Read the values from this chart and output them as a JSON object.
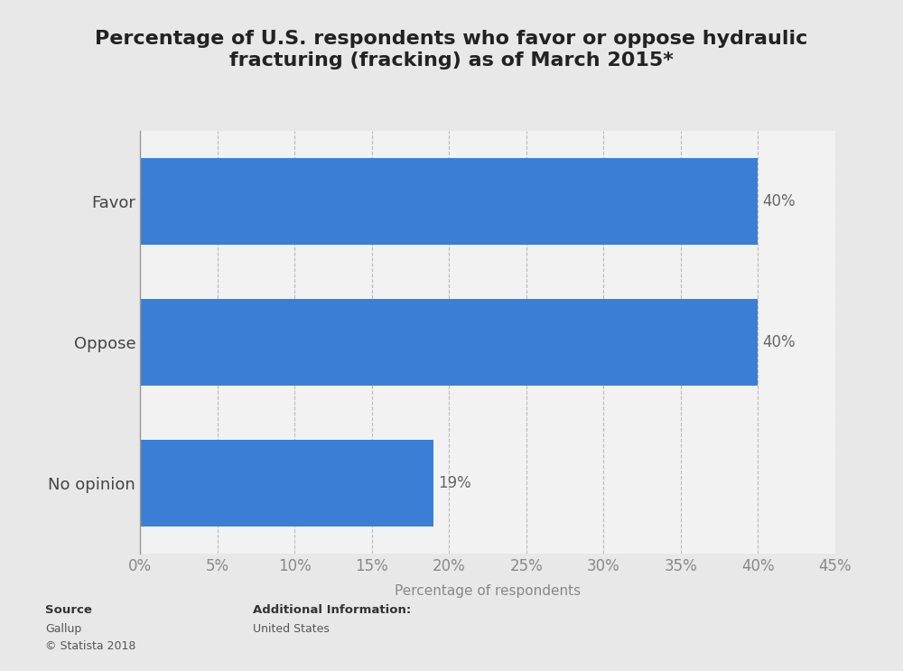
{
  "title": "Percentage of U.S. respondents who favor or oppose hydraulic\nfracturing (fracking) as of March 2015*",
  "categories": [
    "No opinion",
    "Oppose",
    "Favor"
  ],
  "values": [
    19,
    40,
    40
  ],
  "bar_color": "#3a7fd5",
  "background_color": "#e8e8e8",
  "plot_background_color": "#f2f2f2",
  "xlabel": "Percentage of respondents",
  "xlim": [
    0,
    45
  ],
  "xticks": [
    0,
    5,
    10,
    15,
    20,
    25,
    30,
    35,
    40,
    45
  ],
  "bar_labels": [
    "19%",
    "40%",
    "40%"
  ],
  "label_color": "#666666",
  "title_fontsize": 16,
  "ytick_fontsize": 13,
  "tick_fontsize": 12,
  "xlabel_fontsize": 11,
  "bar_height": 0.62,
  "grid_color": "#bbbbbb",
  "grid_style": "--",
  "source_bold": "Source",
  "source_normal": "Gallup\n© Statista 2018",
  "additional_bold": "Additional Information:",
  "additional_normal": "United States"
}
